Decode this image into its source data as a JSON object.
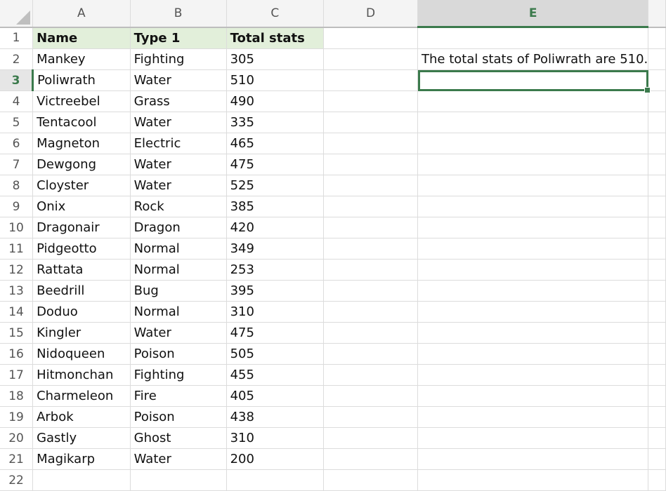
{
  "columns": [
    "A",
    "B",
    "C",
    "D",
    "E",
    ""
  ],
  "selected_column": "E",
  "selected_row": 3,
  "header": {
    "name": "Name",
    "type": "Type 1",
    "total": "Total stats"
  },
  "rows": [
    {
      "name": "Mankey",
      "type": "Fighting",
      "total": "305"
    },
    {
      "name": "Poliwrath",
      "type": "Water",
      "total": "510"
    },
    {
      "name": "Victreebel",
      "type": "Grass",
      "total": "490"
    },
    {
      "name": "Tentacool",
      "type": "Water",
      "total": "335"
    },
    {
      "name": "Magneton",
      "type": "Electric",
      "total": "465"
    },
    {
      "name": "Dewgong",
      "type": "Water",
      "total": "475"
    },
    {
      "name": "Cloyster",
      "type": "Water",
      "total": "525"
    },
    {
      "name": "Onix",
      "type": "Rock",
      "total": "385"
    },
    {
      "name": "Dragonair",
      "type": "Dragon",
      "total": "420"
    },
    {
      "name": "Pidgeotto",
      "type": "Normal",
      "total": "349"
    },
    {
      "name": "Rattata",
      "type": "Normal",
      "total": "253"
    },
    {
      "name": "Beedrill",
      "type": "Bug",
      "total": "395"
    },
    {
      "name": "Doduo",
      "type": "Normal",
      "total": "310"
    },
    {
      "name": "Kingler",
      "type": "Water",
      "total": "475"
    },
    {
      "name": "Nidoqueen",
      "type": "Poison",
      "total": "505"
    },
    {
      "name": "Hitmonchan",
      "type": "Fighting",
      "total": "455"
    },
    {
      "name": "Charmeleon",
      "type": "Fire",
      "total": "405"
    },
    {
      "name": "Arbok",
      "type": "Poison",
      "total": "438"
    },
    {
      "name": "Gastly",
      "type": "Ghost",
      "total": "310"
    },
    {
      "name": "Magikarp",
      "type": "Water",
      "total": "200"
    }
  ],
  "e2_text": "The total stats of Poliwrath are 510.",
  "row_numbers": [
    "1",
    "2",
    "3",
    "4",
    "5",
    "6",
    "7",
    "8",
    "9",
    "10",
    "11",
    "12",
    "13",
    "14",
    "15",
    "16",
    "17",
    "18",
    "19",
    "20",
    "21",
    "22"
  ],
  "colors": {
    "accent": "#3b7a4c",
    "header_fill": "#e2efda"
  }
}
